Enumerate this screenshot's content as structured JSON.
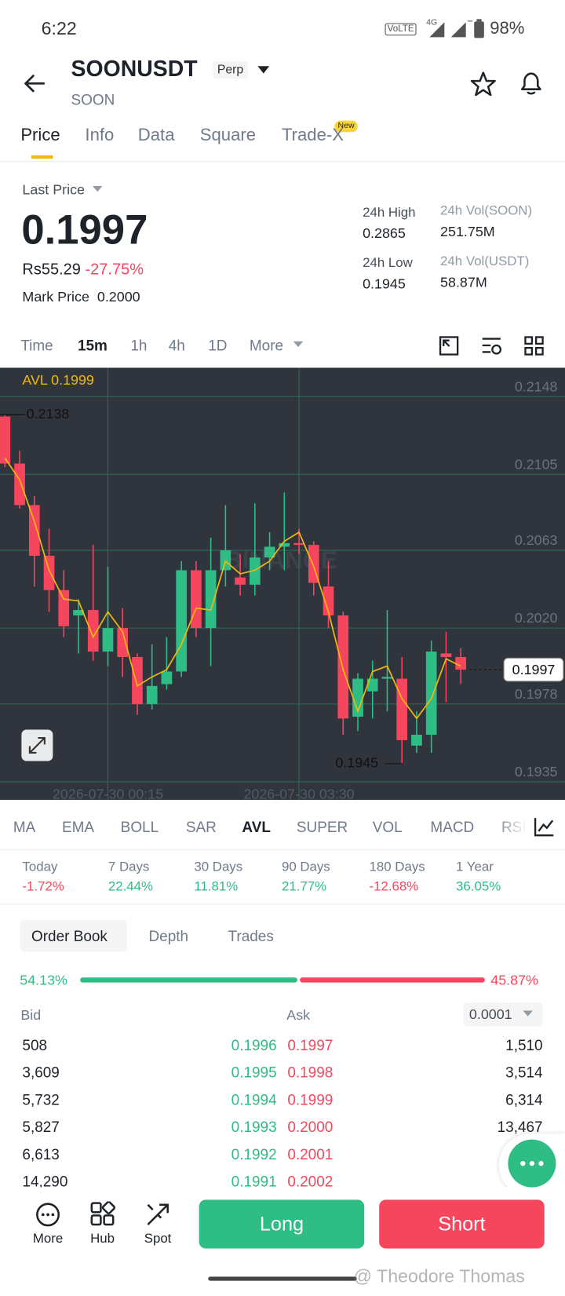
{
  "status": {
    "time": "6:22",
    "volte": "VoLTE",
    "network": "4G",
    "battery": "98%"
  },
  "header": {
    "symbol": "SOONUSDT",
    "badge": "Perp",
    "base": "SOON"
  },
  "tabs": {
    "items": [
      "Price",
      "Info",
      "Data",
      "Square",
      "Trade-X"
    ],
    "new_badge": "New"
  },
  "price": {
    "last_label": "Last Price",
    "last": "0.1997",
    "fiat": "Rs55.29",
    "change": "-27.75%",
    "mark_label": "Mark Price",
    "mark": "0.2000"
  },
  "stats": [
    {
      "label": "24h High",
      "value": "0.2865"
    },
    {
      "label": "24h Low",
      "value": "0.1945"
    },
    {
      "label": "24h Vol(SOON)",
      "value": "251.75M"
    },
    {
      "label": "24h Vol(USDT)",
      "value": "58.87M"
    }
  ],
  "intervals": [
    "Time",
    "15m",
    "1h",
    "4h",
    "1D",
    "More"
  ],
  "chart_data": {
    "type": "candlestick",
    "watermark": "BINANCE",
    "categories": [
      null,
      null,
      null,
      null,
      null,
      null,
      null,
      "2026-07-30 00:15",
      null,
      null,
      null,
      null,
      null,
      null,
      null,
      null,
      null,
      null,
      null,
      null,
      "2026-07-30 03:30",
      null,
      null,
      null,
      null,
      null,
      null,
      null,
      null,
      null,
      null,
      null
    ],
    "open": [
      0.2137,
      0.2111,
      0.2088,
      0.206,
      0.2041,
      0.2027,
      0.203,
      0.2007,
      0.202,
      0.2004,
      0.1978,
      0.1989,
      0.1996,
      0.2052,
      0.202,
      0.2052,
      0.2048,
      0.2044,
      0.2059,
      0.2065,
      0.2067,
      0.2066,
      0.2043,
      0.2027,
      0.1971,
      0.1985,
      0.1992,
      0.1992,
      0.1955,
      0.1961,
      0.2006,
      0.2004
    ],
    "high": [
      0.2138,
      0.2118,
      0.2093,
      0.2075,
      0.2052,
      0.2036,
      0.2066,
      0.2054,
      0.2031,
      0.2006,
      0.2011,
      0.2015,
      0.2057,
      0.2057,
      0.207,
      0.2088,
      0.2061,
      0.2089,
      0.2073,
      0.2095,
      0.2075,
      0.2068,
      0.2057,
      0.2029,
      0.1995,
      0.2002,
      0.203,
      0.2004,
      0.1974,
      0.2013,
      0.2018,
      0.2009
    ],
    "low": [
      0.2109,
      0.2086,
      0.2043,
      0.2029,
      0.2015,
      0.2006,
      0.2002,
      0.1999,
      0.1993,
      0.1972,
      0.1975,
      0.1986,
      0.1993,
      0.2015,
      0.1999,
      0.2043,
      0.2038,
      0.2038,
      0.2052,
      0.2052,
      0.2061,
      0.2038,
      0.202,
      0.1961,
      0.1963,
      0.197,
      0.1974,
      0.1945,
      0.1951,
      0.1951,
      0.1979,
      0.1989
    ],
    "close": [
      0.2111,
      0.2088,
      0.206,
      0.2041,
      0.2021,
      0.203,
      0.2007,
      0.202,
      0.2004,
      0.1978,
      0.1988,
      0.1996,
      0.2052,
      0.202,
      0.2052,
      0.2063,
      0.2044,
      0.2059,
      0.2065,
      0.2067,
      0.2066,
      0.2045,
      0.2027,
      0.197,
      0.1992,
      0.1992,
      0.1993,
      0.1958,
      0.1961,
      0.2007,
      0.2004,
      0.1997
    ],
    "up_color": "#2ebd85",
    "down_color": "#f6465d",
    "avl": {
      "label": "AVL 0.1999",
      "color": "#f0b90b",
      "values": [
        0.2114,
        0.2102,
        0.2079,
        0.2052,
        0.2036,
        0.2035,
        0.2015,
        0.2029,
        0.2018,
        0.1988,
        0.1993,
        0.1997,
        0.2011,
        0.2031,
        0.203,
        0.2057,
        0.205,
        0.2052,
        0.2057,
        0.2068,
        0.2073,
        0.2054,
        0.2029,
        0.1997,
        0.1974,
        0.1996,
        0.1999,
        0.1981,
        0.197,
        0.1981,
        0.2003,
        0.1999
      ]
    },
    "ylim": [
      0.1925,
      0.2164
    ],
    "yticks": [
      0.2148,
      0.2105,
      0.2063,
      {
        "value": 0.202,
        "label": "0.2020"
      },
      0.1978,
      0.1935
    ],
    "grid": true,
    "annotations": {
      "high": 0.2138,
      "low": 0.1945,
      "last": 0.1997
    }
  },
  "indicators": {
    "items": [
      "MA",
      "EMA",
      "BOLL",
      "SAR",
      "AVL",
      "SUPER",
      "VOL",
      "MACD",
      "RSI"
    ],
    "active": 4
  },
  "performance": [
    {
      "label": "Today",
      "value": "-1.72%"
    },
    {
      "label": "7 Days",
      "value": "22.44%"
    },
    {
      "label": "30 Days",
      "value": "11.81%"
    },
    {
      "label": "90 Days",
      "value": "21.77%"
    },
    {
      "label": "180 Days",
      "value": "-12.68%"
    },
    {
      "label": "1 Year",
      "value": "36.05%"
    }
  ],
  "order_book": {
    "tabs": [
      "Order Book",
      "Depth",
      "Trades"
    ],
    "bid_ratio": "54.13%",
    "ask_ratio": "45.87%",
    "bid_header": "Bid",
    "ask_header": "Ask",
    "precision": "0.0001",
    "rows": [
      [
        "508",
        "0.1996",
        "0.1997",
        "1,510"
      ],
      [
        "3,609",
        "0.1995",
        "0.1998",
        "3,514"
      ],
      [
        "5,732",
        "0.1994",
        "0.1999",
        "6,314"
      ],
      [
        "5,827",
        "0.1993",
        "0.2000",
        "13,467"
      ],
      [
        "6,613",
        "0.1992",
        "0.2001"
      ],
      [
        "14,290",
        "0.1991",
        "0.2002"
      ]
    ]
  },
  "bottom": {
    "nav": [
      "More",
      "Hub",
      "Spot"
    ],
    "long": "Long",
    "short": "Short",
    "watermark": "@ Theodore Thomas"
  }
}
